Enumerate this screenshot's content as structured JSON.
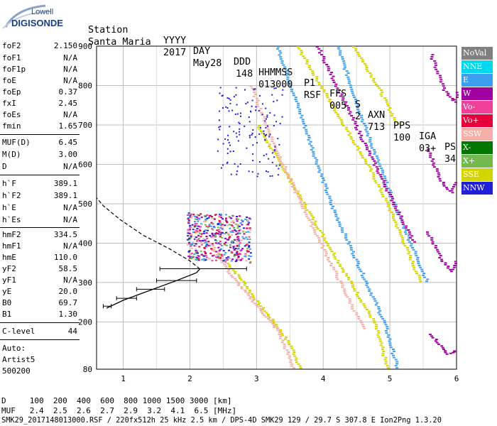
{
  "logo": {
    "line1": "Lowell",
    "line2": "DIGISONDE"
  },
  "header": {
    "labels": [
      "Station",
      "YYYY",
      "DAY",
      "DDD",
      "HHMMSS",
      "P1",
      "FFS",
      "S",
      "AXN",
      "PPS",
      "IGA",
      "PS"
    ],
    "values": [
      "Santa Maria",
      "2017",
      "May28",
      "148",
      "013000",
      "RSF",
      "005",
      "2",
      "713",
      "100",
      "03+",
      "34"
    ]
  },
  "params": {
    "group1": [
      {
        "name": "foF2",
        "value": "2.150"
      },
      {
        "name": "foF1",
        "value": "N/A"
      },
      {
        "name": "foF1p",
        "value": "N/A"
      },
      {
        "name": "foE",
        "value": "N/A"
      },
      {
        "name": "foEp",
        "value": "0.37"
      },
      {
        "name": "fxI",
        "value": "2.45"
      },
      {
        "name": "foEs",
        "value": "N/A"
      },
      {
        "name": "fmin",
        "value": "1.65"
      }
    ],
    "group2": [
      {
        "name": "MUF(D)",
        "value": "6.45"
      },
      {
        "name": "M(D)",
        "value": "3.00"
      },
      {
        "name": "D",
        "value": "N/A"
      }
    ],
    "group3": [
      {
        "name": "h`F",
        "value": "389.1"
      },
      {
        "name": "h`F2",
        "value": "389.1"
      },
      {
        "name": "h`E",
        "value": "N/A"
      },
      {
        "name": "h`Es",
        "value": "N/A"
      }
    ],
    "group4": [
      {
        "name": "hmF2",
        "value": "334.5"
      },
      {
        "name": "hmF1",
        "value": "N/A"
      },
      {
        "name": "hmE",
        "value": "110.0"
      },
      {
        "name": "yF2",
        "value": "58.5"
      },
      {
        "name": "yF1",
        "value": "N/A"
      },
      {
        "name": "yE",
        "value": "20.0"
      },
      {
        "name": "B0",
        "value": "69.7"
      },
      {
        "name": "B1",
        "value": "1.30"
      }
    ],
    "group5": [
      {
        "name": "C-level",
        "value": "44"
      }
    ],
    "auto": [
      "Auto:",
      "Artist5",
      "500200"
    ]
  },
  "legend": [
    {
      "label": "NoVal",
      "color": "#808080"
    },
    {
      "label": "NNE",
      "color": "#00d8f0"
    },
    {
      "label": "E",
      "color": "#3c9ef0"
    },
    {
      "label": "W",
      "color": "#a000a0"
    },
    {
      "label": "Vo-",
      "color": "#f0409a"
    },
    {
      "label": "Vo+",
      "color": "#e8003c"
    },
    {
      "label": "SSW",
      "color": "#f4b0a8"
    },
    {
      "label": "X-",
      "color": "#007800"
    },
    {
      "label": "X+",
      "color": "#74b850"
    },
    {
      "label": "SSE",
      "color": "#d4d400"
    },
    {
      "label": "NNW",
      "color": "#2020d8"
    }
  ],
  "footer": {
    "line1": "D     100  200  400  600  800 1000 1500 3000 [km]",
    "line2": "MUF   2.4  2.5  2.6  2.7  2.9  3.2  4.1  6.5 [MHz]",
    "line3": "SMK29_2017148013000.RSF / 220fx512h 25 kHz 2.5 km / DPS-4D SMK29 129 / 29.7 S 307.8 E Ion2Png 1.3.20"
  },
  "chart_data": {
    "type": "scatter",
    "xlim": [
      0.6,
      6.0
    ],
    "ylim": [
      80,
      900
    ],
    "x_ticks": [
      1,
      2,
      3,
      4,
      5,
      6
    ],
    "y_ticks": [
      80,
      200,
      300,
      400,
      500,
      600,
      700,
      800,
      900
    ],
    "grid": true,
    "traces": [
      {
        "name": "O F2 main",
        "color": "#d4d400",
        "points": [
          [
            2.55,
            350
          ],
          [
            2.8,
            300
          ],
          [
            3.0,
            250
          ],
          [
            3.25,
            200
          ],
          [
            3.5,
            140
          ],
          [
            3.65,
            80
          ]
        ]
      },
      {
        "name": "O F2 second hop",
        "color": "#d4d400",
        "points": [
          [
            3.0,
            700
          ],
          [
            3.35,
            600
          ],
          [
            3.7,
            500
          ],
          [
            4.05,
            400
          ],
          [
            4.4,
            300
          ],
          [
            4.75,
            200
          ],
          [
            4.95,
            80
          ]
        ]
      },
      {
        "name": "O F2 third hop",
        "color": "#d4d400",
        "points": [
          [
            3.6,
            900
          ],
          [
            3.95,
            800
          ],
          [
            4.3,
            700
          ],
          [
            4.65,
            600
          ],
          [
            4.95,
            500
          ],
          [
            5.2,
            400
          ],
          [
            5.45,
            300
          ]
        ]
      },
      {
        "name": "O F2 fourth hop",
        "color": "#d4d400",
        "points": [
          [
            4.45,
            900
          ],
          [
            4.8,
            800
          ],
          [
            5.1,
            700
          ]
        ]
      },
      {
        "name": "X F2 trace",
        "color": "#3c9ef0",
        "points": [
          [
            3.3,
            900
          ],
          [
            3.7,
            700
          ],
          [
            4.1,
            500
          ],
          [
            4.5,
            350
          ],
          [
            4.9,
            200
          ],
          [
            5.1,
            80
          ]
        ]
      },
      {
        "name": "X second hop",
        "color": "#3c9ef0",
        "points": [
          [
            4.2,
            900
          ],
          [
            4.6,
            700
          ],
          [
            5.0,
            520
          ],
          [
            5.3,
            400
          ],
          [
            5.55,
            300
          ]
        ]
      },
      {
        "name": "SSW weak trace",
        "color": "#f4b0a8",
        "points": [
          [
            2.3,
            400
          ],
          [
            2.6,
            320
          ],
          [
            3.0,
            240
          ],
          [
            3.3,
            180
          ],
          [
            3.55,
            80
          ]
        ]
      },
      {
        "name": "SSW trace 2",
        "color": "#f4b0a8",
        "points": [
          [
            2.9,
            800
          ],
          [
            3.25,
            650
          ],
          [
            3.6,
            520
          ],
          [
            3.95,
            400
          ],
          [
            4.3,
            280
          ],
          [
            4.6,
            180
          ]
        ]
      },
      {
        "name": "W trace",
        "color": "#a000a0",
        "points": [
          [
            3.9,
            900
          ],
          [
            4.3,
            760
          ],
          [
            4.7,
            620
          ],
          [
            5.05,
            500
          ],
          [
            5.35,
            400
          ]
        ]
      },
      {
        "name": "cusp 1",
        "color": "#a000a0",
        "points": [
          [
            5.6,
            880
          ],
          [
            5.8,
            790
          ],
          [
            5.95,
            760
          ],
          [
            6.0,
            790
          ]
        ]
      },
      {
        "name": "cusp 2",
        "color": "#a000a0",
        "points": [
          [
            5.55,
            640
          ],
          [
            5.75,
            560
          ],
          [
            5.9,
            530
          ],
          [
            6.0,
            560
          ]
        ]
      },
      {
        "name": "cusp 3",
        "color": "#a000a0",
        "points": [
          [
            5.55,
            430
          ],
          [
            5.75,
            360
          ],
          [
            5.9,
            330
          ],
          [
            6.0,
            360
          ]
        ]
      },
      {
        "name": "cusp 4",
        "color": "#a000a0",
        "points": [
          [
            5.6,
            170
          ],
          [
            5.85,
            120
          ],
          [
            6.0,
            130
          ]
        ]
      }
    ],
    "profile": {
      "color": "#000000",
      "solid": [
        [
          0.75,
          235
        ],
        [
          1.0,
          255
        ],
        [
          1.4,
          280
        ],
        [
          1.8,
          305
        ],
        [
          2.1,
          325
        ],
        [
          2.15,
          334.5
        ]
      ],
      "dashed": [
        [
          2.15,
          334.5
        ],
        [
          2.0,
          355
        ],
        [
          1.7,
          385
        ],
        [
          1.3,
          420
        ],
        [
          0.95,
          460
        ],
        [
          0.7,
          495
        ],
        [
          0.6,
          515
        ]
      ],
      "error_bars": [
        {
          "y": 240,
          "x1": 0.7,
          "x2": 0.82
        },
        {
          "y": 260,
          "x1": 0.9,
          "x2": 1.2
        },
        {
          "y": 283,
          "x1": 1.2,
          "x2": 1.62
        },
        {
          "y": 305,
          "x1": 1.5,
          "x2": 2.1
        },
        {
          "y": 335,
          "x1": 1.55,
          "x2": 2.85
        }
      ]
    }
  }
}
